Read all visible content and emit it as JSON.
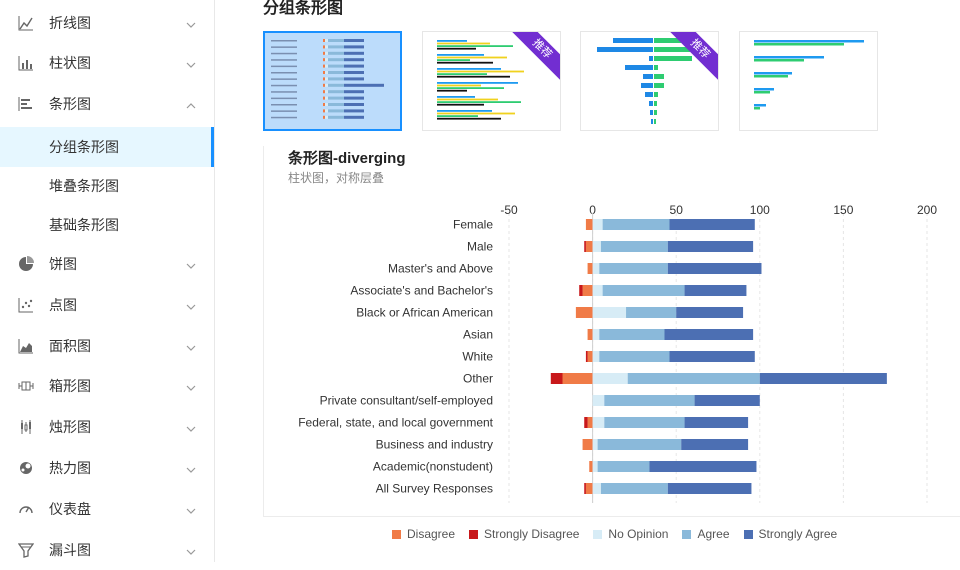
{
  "sidebar": {
    "items": [
      {
        "label": "折线图",
        "icon": "line-chart-icon",
        "expanded": false
      },
      {
        "label": "柱状图",
        "icon": "column-chart-icon",
        "expanded": false
      },
      {
        "label": "条形图",
        "icon": "bar-chart-icon",
        "expanded": true
      },
      {
        "label": "饼图",
        "icon": "pie-chart-icon",
        "expanded": false
      },
      {
        "label": "点图",
        "icon": "scatter-chart-icon",
        "expanded": false
      },
      {
        "label": "面积图",
        "icon": "area-chart-icon",
        "expanded": false
      },
      {
        "label": "箱形图",
        "icon": "box-chart-icon",
        "expanded": false
      },
      {
        "label": "烛形图",
        "icon": "candlestick-chart-icon",
        "expanded": false
      },
      {
        "label": "热力图",
        "icon": "heatmap-icon",
        "expanded": false
      },
      {
        "label": "仪表盘",
        "icon": "gauge-icon",
        "expanded": false
      },
      {
        "label": "漏斗图",
        "icon": "funnel-icon",
        "expanded": false
      }
    ],
    "subitems": [
      {
        "label": "分组条形图",
        "active": true
      },
      {
        "label": "堆叠条形图",
        "active": false
      },
      {
        "label": "基础条形图",
        "active": false
      }
    ]
  },
  "main": {
    "section_title": "分组条形图",
    "thumbnails": [
      {
        "name": "thumbnail-diverging",
        "selected": true,
        "badge": ""
      },
      {
        "name": "thumbnail-grouped",
        "selected": false,
        "badge": "推荐"
      },
      {
        "name": "thumbnail-population",
        "selected": false,
        "badge": "推荐"
      },
      {
        "name": "thumbnail-basic",
        "selected": false,
        "badge": ""
      }
    ],
    "card_title": "条形图-diverging",
    "card_subtitle": "柱状图，对称层叠"
  },
  "colors": {
    "accent": "#1890ff",
    "badge": "#722ed1",
    "disagree": "#f07b47",
    "strongly_disagree": "#c8181b",
    "no_opinion": "#d7ecf6",
    "agree": "#8ab9da",
    "strongly_agree": "#4c6fb3"
  },
  "chart_data": {
    "type": "bar",
    "orientation": "horizontal",
    "stacked": "diverging",
    "xlim": [
      -50,
      200
    ],
    "xticks": [
      -50,
      0,
      50,
      100,
      150,
      200
    ],
    "grid": true,
    "legend_position": "bottom",
    "categories": [
      "Female",
      "Male",
      "Master's and Above",
      "Associate's and Bachelor's",
      "Black or African American",
      "Asian",
      "White",
      "Other",
      "Private consultant/self-employed",
      "Federal, state, and local government",
      "Business and industry",
      "Academic(nonstudent)",
      "All Survey Responses"
    ],
    "series": [
      {
        "name": "Disagree",
        "color": "#f07b47",
        "values": [
          -4,
          -4,
          -3,
          -6,
          -10,
          -3,
          -3,
          -18,
          0,
          -3,
          -6,
          -2,
          -4
        ]
      },
      {
        "name": "Strongly Disagree",
        "color": "#c8181b",
        "values": [
          0,
          -1,
          0,
          -2,
          0,
          0,
          -1,
          -7,
          0,
          -2,
          0,
          0,
          -1
        ]
      },
      {
        "name": "No Opinion",
        "color": "#d7ecf6",
        "values": [
          6,
          5,
          4,
          6,
          20,
          4,
          4,
          21,
          7,
          7,
          3,
          3,
          5
        ]
      },
      {
        "name": "Agree",
        "color": "#8ab9da",
        "values": [
          40,
          40,
          41,
          49,
          30,
          39,
          42,
          79,
          54,
          48,
          50,
          31,
          40
        ]
      },
      {
        "name": "Strongly Agree",
        "color": "#4c6fb3",
        "values": [
          51,
          51,
          56,
          37,
          40,
          53,
          51,
          76,
          39,
          38,
          40,
          64,
          50
        ]
      }
    ]
  }
}
